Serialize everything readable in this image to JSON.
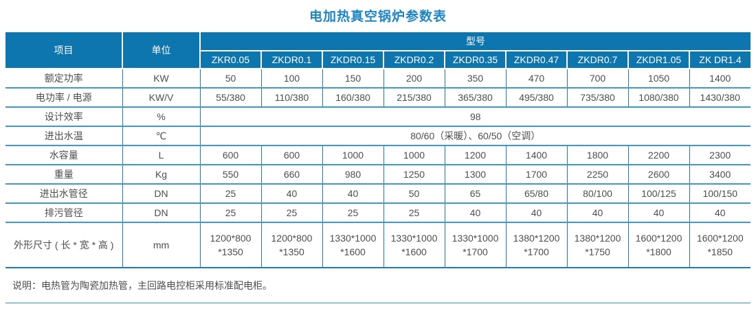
{
  "title": "电加热真空锅炉参数表",
  "colors": {
    "header_bg": "#0d76ae",
    "title_text": "#1e86c2",
    "border_vertical": "#1d7cb8",
    "border_horizontal": "#3b9bd1",
    "body_text": "#4d4d4d"
  },
  "table": {
    "header": {
      "item_label": "项目",
      "unit_label": "单位",
      "model_label": "型号",
      "models": [
        "ZKR0.05",
        "ZKDR0.1",
        "ZKDR0.15",
        "ZKDR0.2",
        "ZKDR0.35",
        "ZKDR0.47",
        "ZKDR0.7",
        "ZKDR1.05",
        "ZK DR1.4"
      ]
    },
    "rows": [
      {
        "item": "额定功率",
        "unit": "KW",
        "values": [
          "50",
          "100",
          "150",
          "200",
          "350",
          "470",
          "700",
          "1050",
          "1400"
        ]
      },
      {
        "item": "电功率 / 电源",
        "unit": "KW/V",
        "values": [
          "55/380",
          "110/380",
          "160/380",
          "215/380",
          "365/380",
          "495/380",
          "735/380",
          "1080/380",
          "1430/380"
        ]
      },
      {
        "item": "设计效率",
        "unit": "%",
        "merged": "98"
      },
      {
        "item": "进出水温",
        "unit": "℃",
        "merged": "80/60（采暖）、60/50（空调）"
      },
      {
        "item": "水容量",
        "unit": "L",
        "values": [
          "600",
          "600",
          "1000",
          "1000",
          "1200",
          "1400",
          "1800",
          "2200",
          "2300"
        ]
      },
      {
        "item": "重量",
        "unit": "Kg",
        "values": [
          "550",
          "660",
          "980",
          "1250",
          "1300",
          "1700",
          "2250",
          "2600",
          "3400"
        ]
      },
      {
        "item": "进出水管径",
        "unit": "DN",
        "values": [
          "25",
          "40",
          "40",
          "50",
          "65",
          "65/80",
          "80/100",
          "100/125",
          "100/150"
        ]
      },
      {
        "item": "排污管径",
        "unit": "DN",
        "values": [
          "25",
          "25",
          "25",
          "25",
          "40",
          "40",
          "40",
          "40",
          "40"
        ]
      },
      {
        "item": "外形尺寸 ( 长 * 宽 * 高 )",
        "unit": "mm",
        "tall": true,
        "values": [
          "1200*800\n*1350",
          "1200*800\n*1350",
          "1330*1000\n*1600",
          "1330*1000\n*1600",
          "1330*1000\n*1700",
          "1380*1200\n*1700",
          "1380*1200\n*1750",
          "1600*1200\n*1800",
          "1600*1200\n*1850"
        ]
      }
    ]
  },
  "note": "说明：电热管为陶瓷加热管，主回路电控柜采用标准配电柜。"
}
